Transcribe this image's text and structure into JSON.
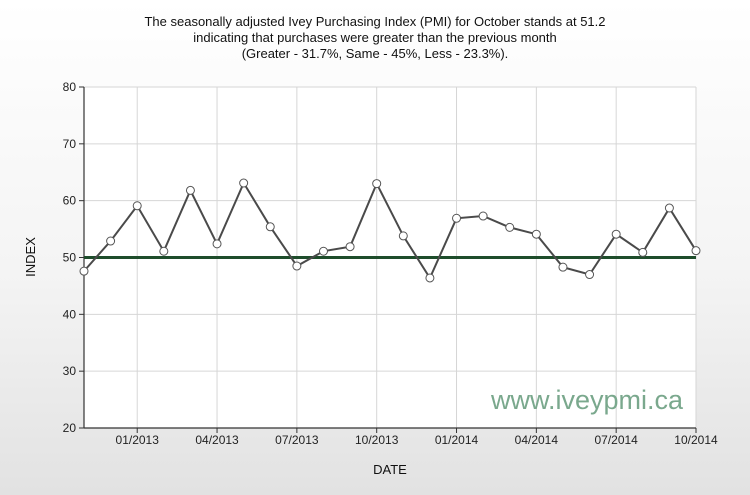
{
  "chart_data": {
    "type": "line",
    "title_lines": [
      "The seasonally adjusted Ivey Purchasing Index (PMI) for October stands at 51.2",
      "indicating that purchases were greater than the previous month",
      "(Greater - 31.7%, Same - 45%, Less - 23.3%)."
    ],
    "xlabel": "DATE",
    "ylabel": "INDEX",
    "ylim": [
      20,
      80
    ],
    "yticks": [
      20,
      30,
      40,
      50,
      60,
      70,
      80
    ],
    "x": [
      "11/2012",
      "12/2012",
      "01/2013",
      "02/2013",
      "03/2013",
      "04/2013",
      "05/2013",
      "06/2013",
      "07/2013",
      "08/2013",
      "09/2013",
      "10/2013",
      "11/2013",
      "12/2013",
      "01/2014",
      "02/2014",
      "03/2014",
      "04/2014",
      "05/2014",
      "06/2014",
      "07/2014",
      "08/2014",
      "09/2014",
      "10/2014"
    ],
    "xtick_labels": [
      "01/2013",
      "04/2013",
      "07/2013",
      "10/2013",
      "01/2014",
      "04/2014",
      "07/2014",
      "10/2014"
    ],
    "series": [
      {
        "values": [
          47.6,
          52.9,
          59.1,
          51.1,
          61.8,
          52.4,
          63.1,
          55.4,
          48.5,
          51.1,
          51.9,
          63.0,
          53.8,
          46.4,
          56.9,
          57.3,
          55.3,
          54.1,
          48.3,
          47.0,
          54.1,
          50.9,
          58.7,
          51.2
        ],
        "color": "#4a4a4a"
      }
    ],
    "reference_line": {
      "value": 50,
      "color": "#1e4d2b"
    },
    "grid": true,
    "watermark": "www.iveypmi.ca"
  }
}
